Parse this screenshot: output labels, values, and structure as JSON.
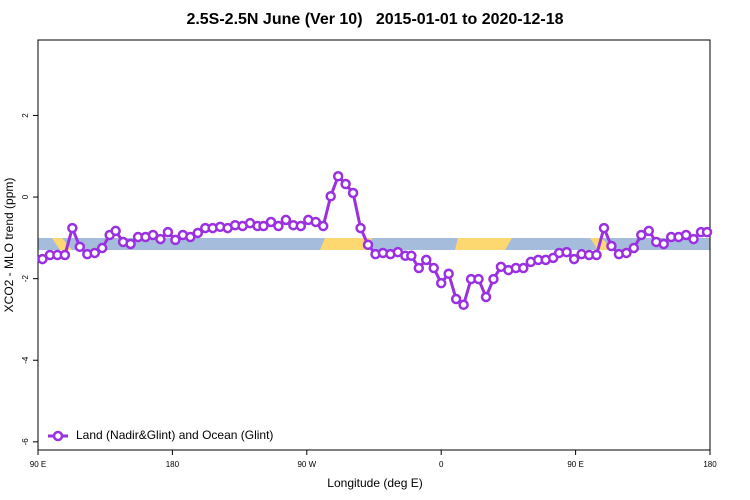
{
  "chart_data": {
    "type": "line",
    "title": "2.5S-2.5N June (Ver 10)   2015-01-01 to 2020-12-18",
    "xlabel": "Longitude (deg E)",
    "ylabel": "XCO2 - MLO trend (ppm)",
    "xlim": [
      90,
      540
    ],
    "ylim": [
      -6.2,
      3.85
    ],
    "xticks": [
      {
        "value": 90,
        "label": "90 E"
      },
      180,
      {
        "value": 270,
        "label": "90 W"
      },
      {
        "value": 360,
        "label": "0"
      },
      {
        "value": 450,
        "label": "90 E"
      },
      {
        "value": 540,
        "label": "180"
      }
    ],
    "yticks": [
      -6,
      -4,
      -2,
      0,
      2
    ],
    "grid": false,
    "legend": "bottom-left",
    "x": [
      93,
      98,
      103,
      108,
      113,
      118,
      123,
      128,
      133,
      138,
      142,
      147,
      152,
      157,
      162,
      167,
      172,
      177,
      182,
      187,
      192,
      197,
      202,
      207,
      212,
      217,
      222,
      227,
      232,
      237,
      241,
      246,
      251,
      256,
      261,
      266,
      271,
      276,
      281,
      286,
      291,
      296,
      301,
      306,
      311,
      316,
      321,
      326,
      331,
      336,
      340,
      345,
      350,
      355,
      360,
      365,
      370,
      375,
      380,
      385,
      390,
      395,
      400,
      405,
      410,
      415,
      420,
      425,
      430,
      435,
      439,
      444,
      449,
      454,
      459,
      464,
      469,
      474,
      479,
      484,
      489,
      494,
      499,
      504,
      509,
      514,
      519,
      524,
      529,
      534,
      538
    ],
    "series": [
      {
        "name": "Land (Nadir&Glint) and Ocean (Glint)",
        "color": "#9b30e0",
        "values": [
          -1.52,
          -1.42,
          -1.42,
          -1.42,
          -0.76,
          -1.22,
          -1.4,
          -1.37,
          -1.25,
          -0.93,
          -0.83,
          -1.1,
          -1.15,
          -0.98,
          -0.98,
          -0.93,
          -1.03,
          -0.86,
          -1.05,
          -0.93,
          -0.98,
          -0.88,
          -0.76,
          -0.76,
          -0.73,
          -0.76,
          -0.69,
          -0.71,
          -0.64,
          -0.71,
          -0.71,
          -0.61,
          -0.71,
          -0.56,
          -0.69,
          -0.71,
          -0.56,
          -0.61,
          -0.71,
          0.02,
          0.51,
          0.32,
          0.1,
          -0.76,
          -1.17,
          -1.4,
          -1.37,
          -1.4,
          -1.35,
          -1.44,
          -1.44,
          -1.74,
          -1.54,
          -1.74,
          -2.11,
          -1.88,
          -2.5,
          -2.64,
          -2.01,
          -2.01,
          -2.45,
          -2.01,
          -1.71,
          -1.79,
          -1.74,
          -1.74,
          -1.59,
          -1.54,
          -1.54,
          -1.49,
          -1.37,
          -1.35,
          -1.52,
          -1.4,
          -1.42,
          -1.42,
          -0.76,
          -1.2,
          -1.4,
          -1.37,
          -1.25,
          -0.93,
          -0.83,
          -1.1,
          -1.15,
          -0.98,
          -0.98,
          -0.93,
          -1.03,
          -0.86,
          -0.86
        ]
      }
    ]
  }
}
